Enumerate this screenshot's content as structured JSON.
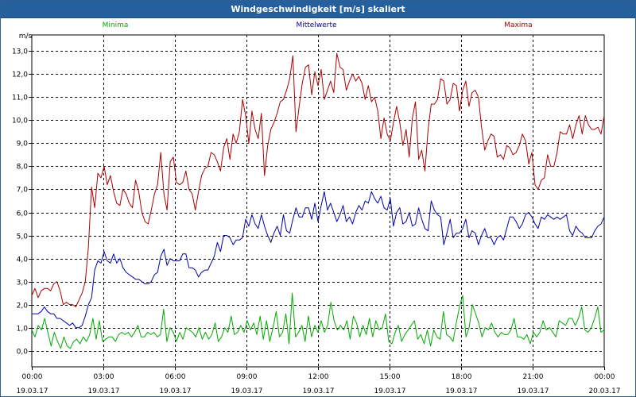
{
  "window": {
    "title": "Windgeschwindigkeit [m/s] skaliert"
  },
  "chart_data": {
    "type": "line",
    "title": "Windgeschwindigkeit [m/s] skaliert",
    "ylabel": "m/s",
    "ylim": [
      -0.7,
      13.7
    ],
    "yticks": [
      0.0,
      1.0,
      2.0,
      3.0,
      4.0,
      5.0,
      6.0,
      7.0,
      8.0,
      9.0,
      10.0,
      11.0,
      12.0,
      13.0
    ],
    "ytick_labels": [
      "0,0",
      "1,0",
      "2,0",
      "3,0",
      "4,0",
      "5,0",
      "6,0",
      "7,0",
      "8,0",
      "9,0",
      "10,0",
      "11,0",
      "12,0",
      "13,0"
    ],
    "xlim": [
      0,
      24
    ],
    "xticks": [
      {
        "hours": 0,
        "time": "00:00",
        "date": "19.03.17"
      },
      {
        "hours": 3,
        "time": "03:00",
        "date": "19.03.17"
      },
      {
        "hours": 6,
        "time": "06:00",
        "date": "19.03.17"
      },
      {
        "hours": 9,
        "time": "09:00",
        "date": "19.03.17"
      },
      {
        "hours": 12,
        "time": "12:00",
        "date": "19.03.17"
      },
      {
        "hours": 15,
        "time": "15:00",
        "date": "19.03.17"
      },
      {
        "hours": 18,
        "time": "18:00",
        "date": "19.03.17"
      },
      {
        "hours": 21,
        "time": "21:00",
        "date": "19.03.17"
      },
      {
        "hours": 24,
        "time": "00:00",
        "date": "20.03.17"
      }
    ],
    "grid": true,
    "legend_position": "top",
    "series": [
      {
        "name": "Minima",
        "color": "#00aa00",
        "values": [
          0.9,
          0.6,
          1.1,
          0.9,
          1.4,
          0.8,
          0.2,
          0.8,
          0.4,
          0.1,
          0.6,
          0.2,
          0.1,
          0.4,
          0.5,
          0.3,
          0.6,
          0.4,
          0.7,
          1.4,
          0.5,
          1.3,
          0.4,
          0.5,
          0.6,
          0.6,
          0.4,
          0.7,
          0.8,
          0.7,
          0.8,
          0.6,
          0.8,
          1.1,
          0.6,
          0.6,
          0.8,
          0.7,
          0.8,
          0.6,
          0.7,
          1.8,
          0.4,
          1.0,
          0.8,
          0.4,
          0.8,
          0.5,
          1.0,
          0.9,
          0.8,
          0.6,
          1.0,
          0.5,
          0.8,
          0.5,
          0.7,
          1.2,
          0.4,
          0.6,
          1.0,
          0.8,
          1.5,
          0.7,
          0.8,
          1.1,
          0.8,
          1.3,
          0.9,
          1.2,
          0.7,
          1.5,
          0.5,
          1.3,
          0.4,
          1.0,
          1.7,
          0.6,
          0.8,
          1.6,
          0.3,
          2.5,
          0.6,
          0.8,
          1.1,
          0.4,
          1.5,
          0.6,
          1.1,
          0.8,
          1.3,
          0.8,
          1.1,
          2.1,
          1.3,
          0.9,
          1.1,
          0.9,
          1.3,
          0.5,
          1.5,
          1.2,
          0.6,
          1.1,
          0.7,
          1.4,
          0.6,
          1.3,
          0.9,
          1.0,
          1.6,
          0.4,
          0.3,
          0.8,
          1.1,
          0.4,
          0.7,
          0.9,
          1.1,
          1.3,
          0.5,
          0.7,
          0.3,
          0.9,
          0.2,
          0.9,
          0.6,
          0.5,
          1.7,
          0.7,
          0.6,
          0.4,
          1.2,
          1.9,
          2.4,
          0.6,
          1.0,
          2.0,
          1.6,
          1.2,
          0.6,
          1.0,
          0.9,
          1.2,
          0.8,
          0.6,
          0.8,
          0.7,
          0.7,
          0.9,
          1.4,
          0.6,
          0.6,
          0.5,
          0.7,
          0.3,
          0.8,
          0.6,
          0.8,
          1.3,
          0.9,
          1.0,
          0.8,
          0.6,
          1.3,
          1.2,
          1.1,
          1.4,
          1.4,
          1.1,
          1.4,
          1.9,
          0.9,
          0.8,
          1.0,
          1.4,
          1.9,
          0.8,
          0.9
        ]
      },
      {
        "name": "Mittelwerte",
        "color": "#0000aa",
        "values": [
          1.6,
          1.6,
          1.6,
          1.7,
          1.9,
          1.7,
          1.6,
          1.6,
          1.4,
          1.4,
          1.3,
          1.2,
          1.1,
          1.2,
          1.0,
          1.0,
          1.1,
          1.5,
          2.0,
          2.3,
          3.5,
          3.9,
          3.8,
          4.3,
          3.9,
          3.8,
          4.2,
          3.8,
          4.0,
          3.6,
          3.4,
          3.3,
          3.2,
          3.1,
          3.1,
          3.0,
          2.9,
          2.9,
          3.0,
          3.3,
          3.4,
          4.1,
          4.4,
          3.7,
          4.0,
          3.9,
          3.9,
          3.9,
          4.2,
          4.2,
          3.6,
          3.6,
          3.5,
          3.2,
          3.4,
          3.5,
          3.5,
          3.8,
          4.1,
          4.7,
          4.3,
          5.0,
          5.0,
          4.9,
          4.6,
          4.8,
          4.8,
          4.9,
          5.7,
          5.4,
          5.9,
          5.5,
          5.3,
          5.9,
          5.4,
          5.0,
          4.7,
          5.1,
          5.4,
          5.0,
          5.9,
          5.2,
          5.1,
          5.7,
          6.2,
          5.8,
          5.8,
          6.2,
          6.2,
          5.7,
          6.4,
          5.6,
          6.3,
          6.9,
          6.1,
          6.4,
          6.0,
          5.6,
          5.9,
          6.3,
          5.6,
          5.8,
          5.5,
          6.0,
          6.3,
          6.1,
          6.5,
          6.4,
          6.9,
          6.6,
          6.4,
          6.7,
          6.2,
          6.1,
          6.6,
          5.4,
          6.0,
          6.2,
          5.5,
          5.6,
          6.0,
          5.4,
          5.5,
          6.2,
          5.7,
          5.3,
          5.2,
          6.5,
          6.1,
          5.9,
          5.8,
          4.6,
          5.1,
          5.7,
          4.9,
          5.1,
          5.1,
          5.3,
          5.7,
          4.9,
          5.2,
          5.1,
          4.6,
          5.0,
          5.3,
          4.9,
          4.9,
          4.6,
          4.9,
          5.0,
          4.8,
          5.3,
          5.8,
          5.8,
          5.6,
          5.3,
          5.5,
          5.9,
          6.0,
          5.8,
          5.5,
          5.3,
          5.8,
          5.7,
          5.9,
          5.8,
          5.7,
          5.8,
          5.7,
          5.8,
          5.9,
          5.2,
          5.0,
          5.4,
          5.2,
          5.1,
          4.9,
          4.9,
          4.9,
          5.2,
          5.4,
          5.5,
          5.8
        ]
      },
      {
        "name": "Maxima",
        "color": "#aa0000",
        "values": [
          2.4,
          2.7,
          2.3,
          2.6,
          2.7,
          2.7,
          2.6,
          2.9,
          3.0,
          2.6,
          2.0,
          2.1,
          2.0,
          2.0,
          1.9,
          2.2,
          2.5,
          3.0,
          4.5,
          7.1,
          6.2,
          7.7,
          7.5,
          8.0,
          7.2,
          7.6,
          6.9,
          6.4,
          6.3,
          7.0,
          6.8,
          6.4,
          6.2,
          7.4,
          6.9,
          6.0,
          5.6,
          5.5,
          6.1,
          6.8,
          7.2,
          8.6,
          6.8,
          6.1,
          8.2,
          8.4,
          7.3,
          7.2,
          7.3,
          7.8,
          7.0,
          6.8,
          6.1,
          6.9,
          7.6,
          7.9,
          8.0,
          8.6,
          8.5,
          8.2,
          7.8,
          8.8,
          9.2,
          8.3,
          9.4,
          9.0,
          9.5,
          10.9,
          10.2,
          9.0,
          10.4,
          9.6,
          9.2,
          10.3,
          7.6,
          8.9,
          9.6,
          9.9,
          10.3,
          10.8,
          10.9,
          11.3,
          11.8,
          12.8,
          9.5,
          10.6,
          11.6,
          12.3,
          12.4,
          11.1,
          12.1,
          11.5,
          12.2,
          10.9,
          11.3,
          11.7,
          11.2,
          12.9,
          12.3,
          12.2,
          11.3,
          11.7,
          12.0,
          11.7,
          11.9,
          11.6,
          10.9,
          11.5,
          10.8,
          11.0,
          10.4,
          9.2,
          10.1,
          9.4,
          9.1,
          9.9,
          10.6,
          9.9,
          8.9,
          9.6,
          8.4,
          10.1,
          10.8,
          8.3,
          8.7,
          7.8,
          9.6,
          10.7,
          10.7,
          10.9,
          11.8,
          11.7,
          10.7,
          10.9,
          11.6,
          11.5,
          10.4,
          11.3,
          11.7,
          10.6,
          11.2,
          11.3,
          11.0,
          9.7,
          8.7,
          9.1,
          9.4,
          9.3,
          8.4,
          8.5,
          8.3,
          8.9,
          8.8,
          8.5,
          8.6,
          8.9,
          9.4,
          9.1,
          8.1,
          8.6,
          7.2,
          7.0,
          7.4,
          7.5,
          8.5,
          8.0,
          8.0,
          8.6,
          9.5,
          9.4,
          9.4,
          9.8,
          9.2,
          9.8,
          10.2,
          9.4,
          10.2,
          9.8,
          9.6,
          9.6,
          9.7,
          9.4,
          10.2
        ]
      }
    ]
  }
}
